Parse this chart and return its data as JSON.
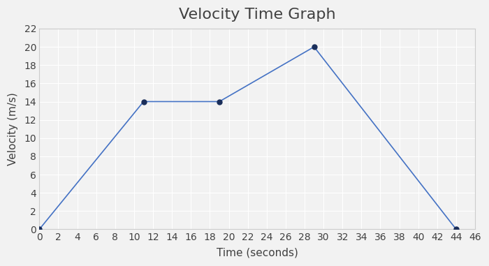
{
  "title": "Velocity Time Graph",
  "xlabel": "Time (seconds)",
  "ylabel": "Velocity (m/s)",
  "x": [
    0,
    11,
    19,
    29,
    44
  ],
  "y": [
    0,
    14,
    14,
    20,
    0
  ],
  "xlim": [
    0,
    46
  ],
  "ylim": [
    0,
    22
  ],
  "xticks": [
    0,
    2,
    4,
    6,
    8,
    10,
    12,
    14,
    16,
    18,
    20,
    22,
    24,
    26,
    28,
    30,
    32,
    34,
    36,
    38,
    40,
    42,
    44,
    46
  ],
  "yticks": [
    0,
    2,
    4,
    6,
    8,
    10,
    12,
    14,
    16,
    18,
    20,
    22
  ],
  "line_color": "#4472c4",
  "marker_color": "#1a2e5a",
  "background_color": "#f2f2f2",
  "plot_bg_color": "#f2f2f2",
  "grid_color": "#ffffff",
  "title_fontsize": 16,
  "label_fontsize": 11,
  "tick_fontsize": 10,
  "title_color": "#404040",
  "label_color": "#404040",
  "tick_color": "#404040"
}
